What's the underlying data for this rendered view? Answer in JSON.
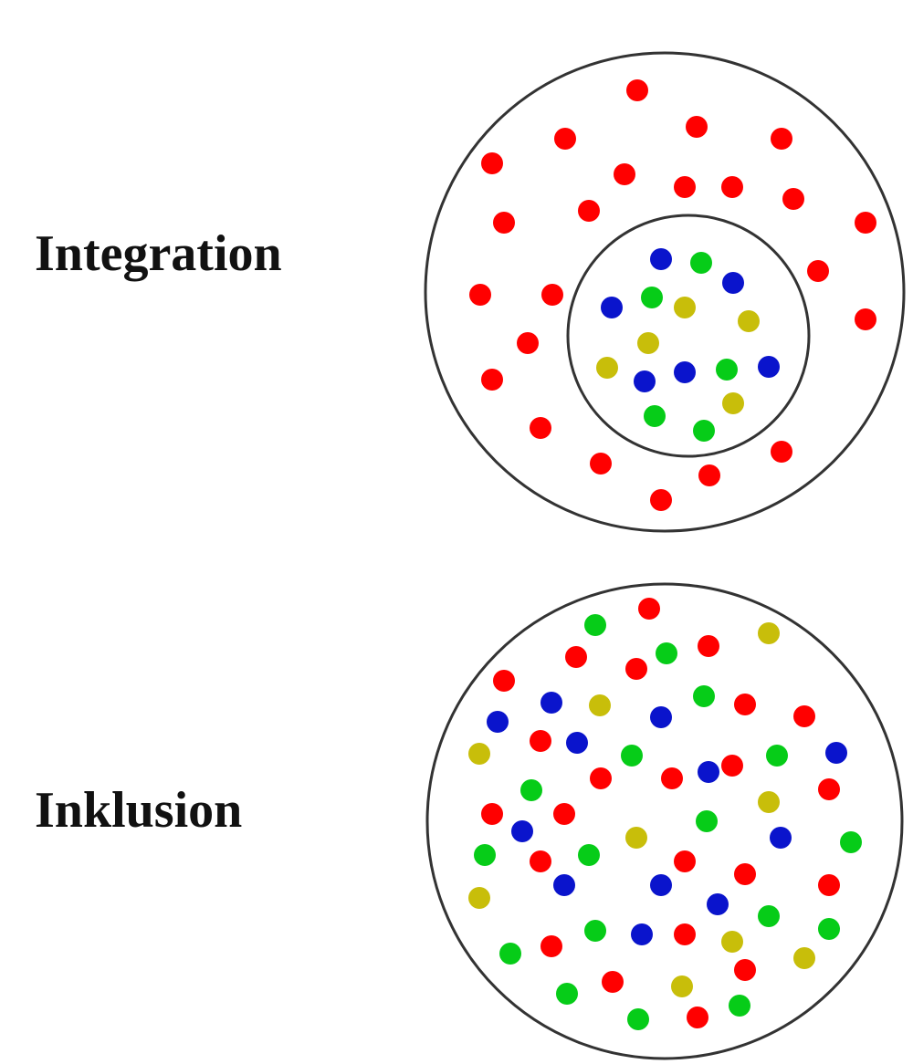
{
  "integration": {
    "label": "Integration"
  },
  "inclusion": {
    "label": "Inklusion"
  },
  "colors": {
    "red": "#ff0000",
    "blue": "#0a14cc",
    "green": "#06cc18",
    "yellow": "#c8be0a",
    "outline": "#333333"
  }
}
